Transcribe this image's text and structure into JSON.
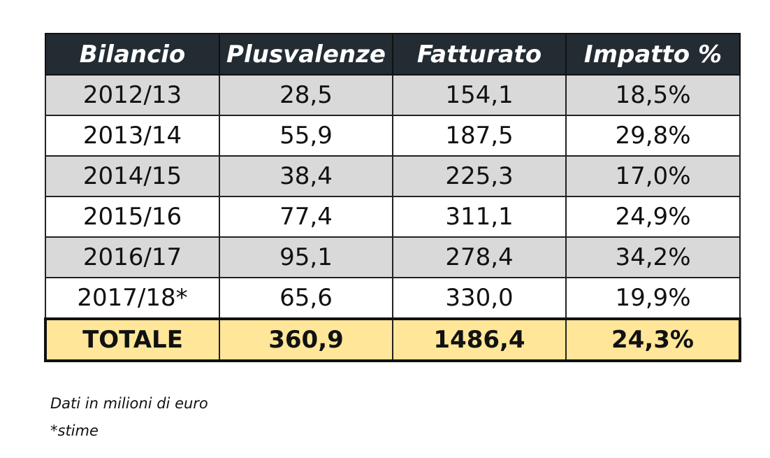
{
  "table": {
    "header": [
      "Bilancio",
      "Plusvalenze",
      "Fatturato",
      "Impatto %"
    ],
    "rows": [
      [
        "2012/13",
        "28,5",
        "154,1",
        "18,5%"
      ],
      [
        "2013/14",
        "55,9",
        "187,5",
        "29,8%"
      ],
      [
        "2014/15",
        "38,4",
        "225,3",
        "17,0%"
      ],
      [
        "2015/16",
        "77,4",
        "311,1",
        "24,9%"
      ],
      [
        "2016/17",
        "95,1",
        "278,4",
        "34,2%"
      ],
      [
        "2017/18*",
        "65,6",
        "330,0",
        "19,9%"
      ]
    ],
    "total": [
      "TOTALE",
      "360,9",
      "1486,4",
      "24,3%"
    ]
  },
  "notes": [
    "Dati in milioni di euro",
    "*stime"
  ]
}
